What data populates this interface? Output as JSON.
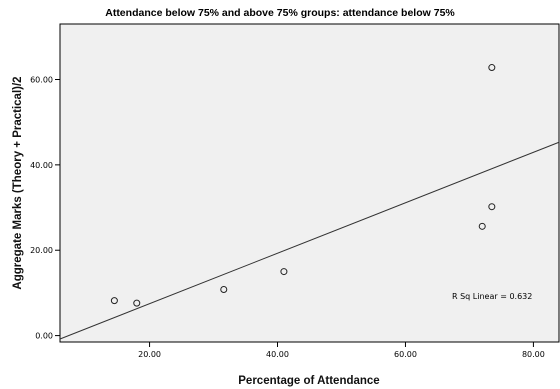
{
  "chart_data": {
    "type": "scatter",
    "title": "Attendance below 75% and above 75% groups: attendance below 75%",
    "xlabel": "Percentage of Attendance",
    "ylabel": "Aggregate Marks (Theory + Practical)/2",
    "xlim": [
      6,
      84
    ],
    "ylim": [
      -1.5,
      73
    ],
    "x_ticks": [
      20,
      40,
      60,
      80
    ],
    "x_tick_labels": [
      "20.00",
      "40.00",
      "60.00",
      "80.00"
    ],
    "y_ticks": [
      0,
      20,
      40,
      60
    ],
    "y_tick_labels": [
      "0.00",
      "20.00",
      "40.00",
      "60.00"
    ],
    "grid": false,
    "points": [
      {
        "x": 14.5,
        "y": 8.2
      },
      {
        "x": 18.0,
        "y": 7.6
      },
      {
        "x": 31.6,
        "y": 10.8
      },
      {
        "x": 41.0,
        "y": 15.0
      },
      {
        "x": 72.0,
        "y": 25.6
      },
      {
        "x": 73.5,
        "y": 30.2
      },
      {
        "x": 73.5,
        "y": 62.8
      }
    ],
    "fit_line": {
      "x1": 6,
      "y1": -0.8,
      "x2": 84,
      "y2": 45.3
    },
    "r_squared_label": "R Sq Linear = 0.632",
    "colors": {
      "plot_background": "#f0f0f0",
      "marker_stroke": "#222222",
      "line": "#333333"
    }
  }
}
